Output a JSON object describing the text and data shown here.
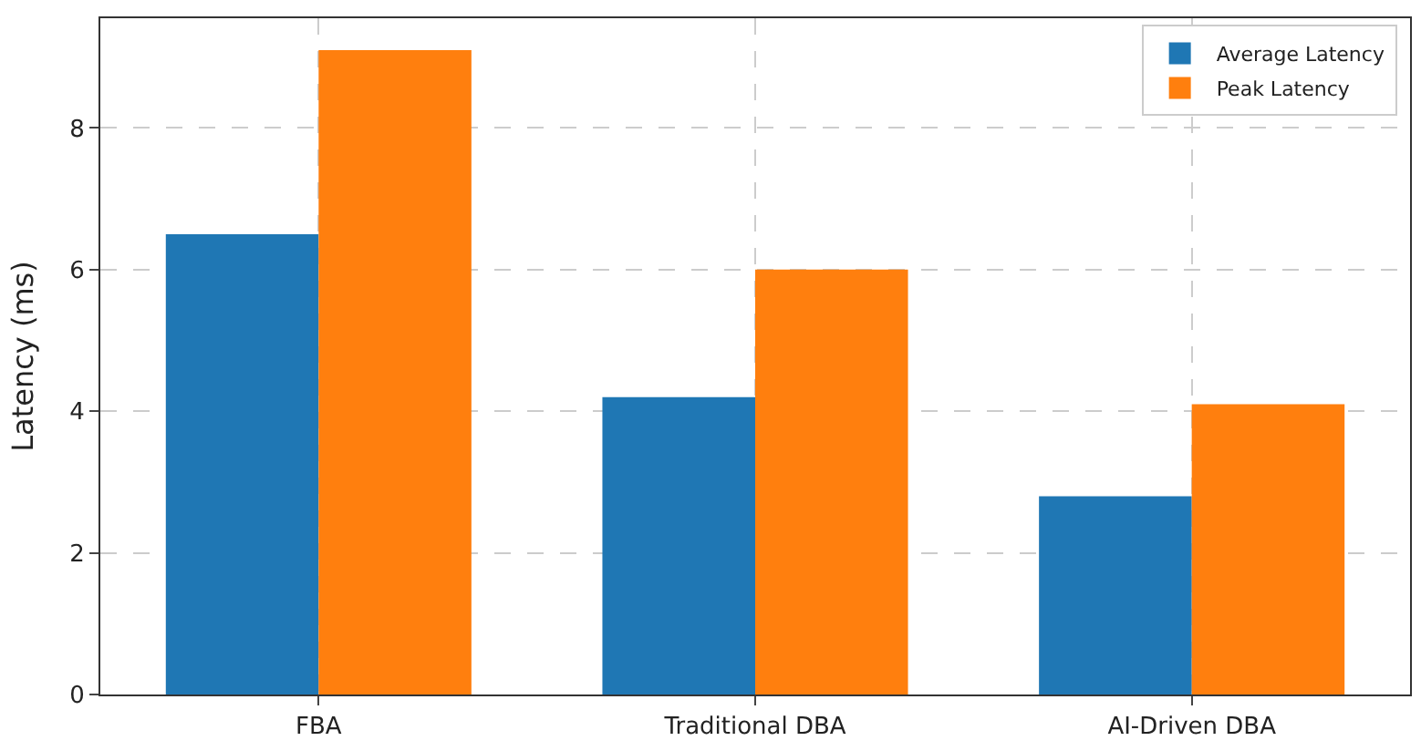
{
  "chart_data": {
    "type": "bar",
    "ylabel": "Latency (ms)",
    "categories": [
      "FBA",
      "Traditional DBA",
      "AI-Driven DBA"
    ],
    "series": [
      {
        "name": "Average Latency",
        "color": "#1f77b4",
        "values": [
          6.5,
          4.2,
          2.8
        ]
      },
      {
        "name": "Peak Latency",
        "color": "#ff7f0e",
        "values": [
          9.1,
          6.0,
          4.1
        ]
      }
    ],
    "ylim": [
      0,
      9.55
    ],
    "yticks": [
      0,
      2,
      4,
      6,
      8
    ],
    "grid": true,
    "legend": "top right"
  }
}
